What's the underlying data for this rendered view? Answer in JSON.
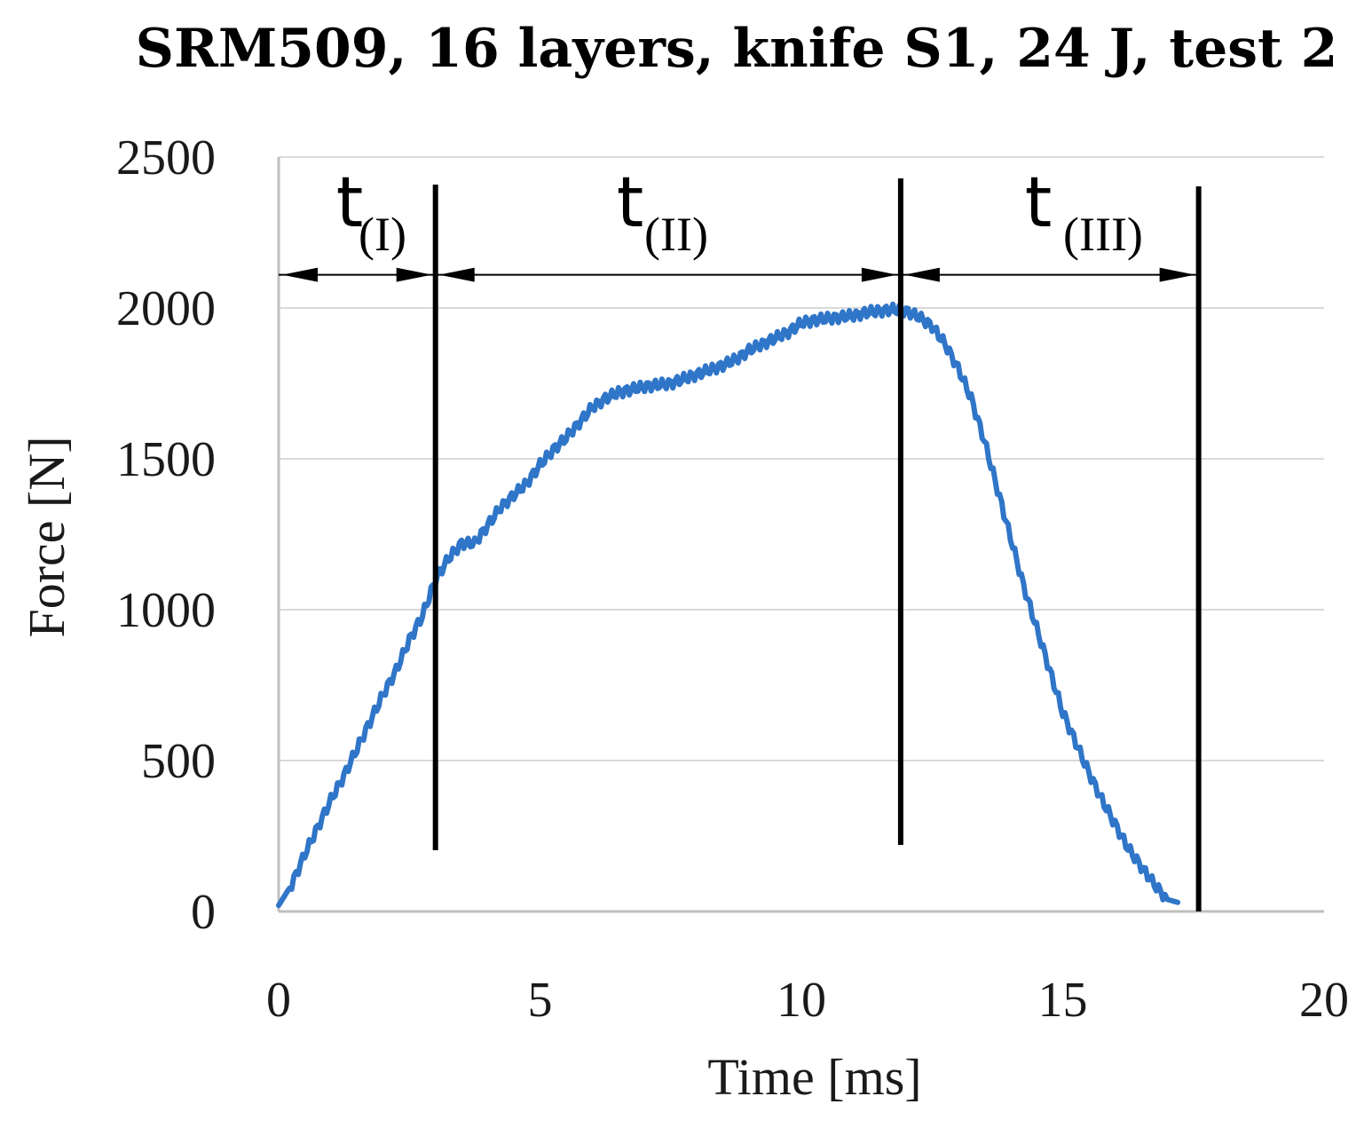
{
  "chart_data": {
    "type": "line",
    "title": "SRM509, 16 layers, knife S1, 24 J, test 2",
    "xlabel": "Time [ms]",
    "ylabel": "Force [N]",
    "xlim": [
      0,
      20
    ],
    "ylim": [
      0,
      2500
    ],
    "x_ticks": [
      0,
      5,
      10,
      15,
      20
    ],
    "y_ticks": [
      0,
      500,
      1000,
      1500,
      2000,
      2500
    ],
    "grid": "horizontal",
    "series": [
      {
        "color": "#2f75c8",
        "points": [
          [
            0.0,
            20
          ],
          [
            0.25,
            90
          ],
          [
            0.5,
            190
          ],
          [
            0.75,
            280
          ],
          [
            1.0,
            370
          ],
          [
            1.25,
            450
          ],
          [
            1.5,
            540
          ],
          [
            1.75,
            630
          ],
          [
            2.0,
            720
          ],
          [
            2.25,
            800
          ],
          [
            2.5,
            900
          ],
          [
            2.75,
            980
          ],
          [
            3.0,
            1100
          ],
          [
            3.25,
            1170
          ],
          [
            3.5,
            1220
          ],
          [
            3.75,
            1220
          ],
          [
            4.0,
            1280
          ],
          [
            4.25,
            1340
          ],
          [
            4.5,
            1380
          ],
          [
            4.75,
            1420
          ],
          [
            5.0,
            1480
          ],
          [
            5.25,
            1530
          ],
          [
            5.5,
            1570
          ],
          [
            5.75,
            1620
          ],
          [
            6.0,
            1670
          ],
          [
            6.25,
            1700
          ],
          [
            6.5,
            1720
          ],
          [
            6.75,
            1730
          ],
          [
            7.0,
            1740
          ],
          [
            7.25,
            1745
          ],
          [
            7.5,
            1750
          ],
          [
            7.75,
            1765
          ],
          [
            8.0,
            1780
          ],
          [
            8.25,
            1795
          ],
          [
            8.5,
            1810
          ],
          [
            8.75,
            1830
          ],
          [
            9.0,
            1860
          ],
          [
            9.25,
            1880
          ],
          [
            9.5,
            1900
          ],
          [
            9.75,
            1920
          ],
          [
            10.0,
            1950
          ],
          [
            10.25,
            1960
          ],
          [
            10.5,
            1965
          ],
          [
            10.75,
            1970
          ],
          [
            11.0,
            1975
          ],
          [
            11.25,
            1985
          ],
          [
            11.5,
            1990
          ],
          [
            11.75,
            1995
          ],
          [
            12.0,
            1990
          ],
          [
            12.25,
            1970
          ],
          [
            12.5,
            1940
          ],
          [
            12.75,
            1880
          ],
          [
            13.0,
            1800
          ],
          [
            13.25,
            1700
          ],
          [
            13.5,
            1560
          ],
          [
            13.75,
            1400
          ],
          [
            14.0,
            1240
          ],
          [
            14.25,
            1080
          ],
          [
            14.5,
            940
          ],
          [
            14.75,
            800
          ],
          [
            15.0,
            660
          ],
          [
            15.25,
            560
          ],
          [
            15.5,
            460
          ],
          [
            15.75,
            370
          ],
          [
            16.0,
            290
          ],
          [
            16.25,
            210
          ],
          [
            16.5,
            150
          ],
          [
            16.75,
            90
          ],
          [
            17.0,
            40
          ],
          [
            17.2,
            30
          ]
        ]
      }
    ],
    "phase_markers": [
      {
        "x": 3.0,
        "label": "t",
        "subscript": "(I)"
      },
      {
        "x": 11.9,
        "label": "t",
        "subscript": "(II)"
      },
      {
        "x": 17.6,
        "label": "t",
        "subscript": "(III)"
      }
    ],
    "arrow_force": 2110
  }
}
